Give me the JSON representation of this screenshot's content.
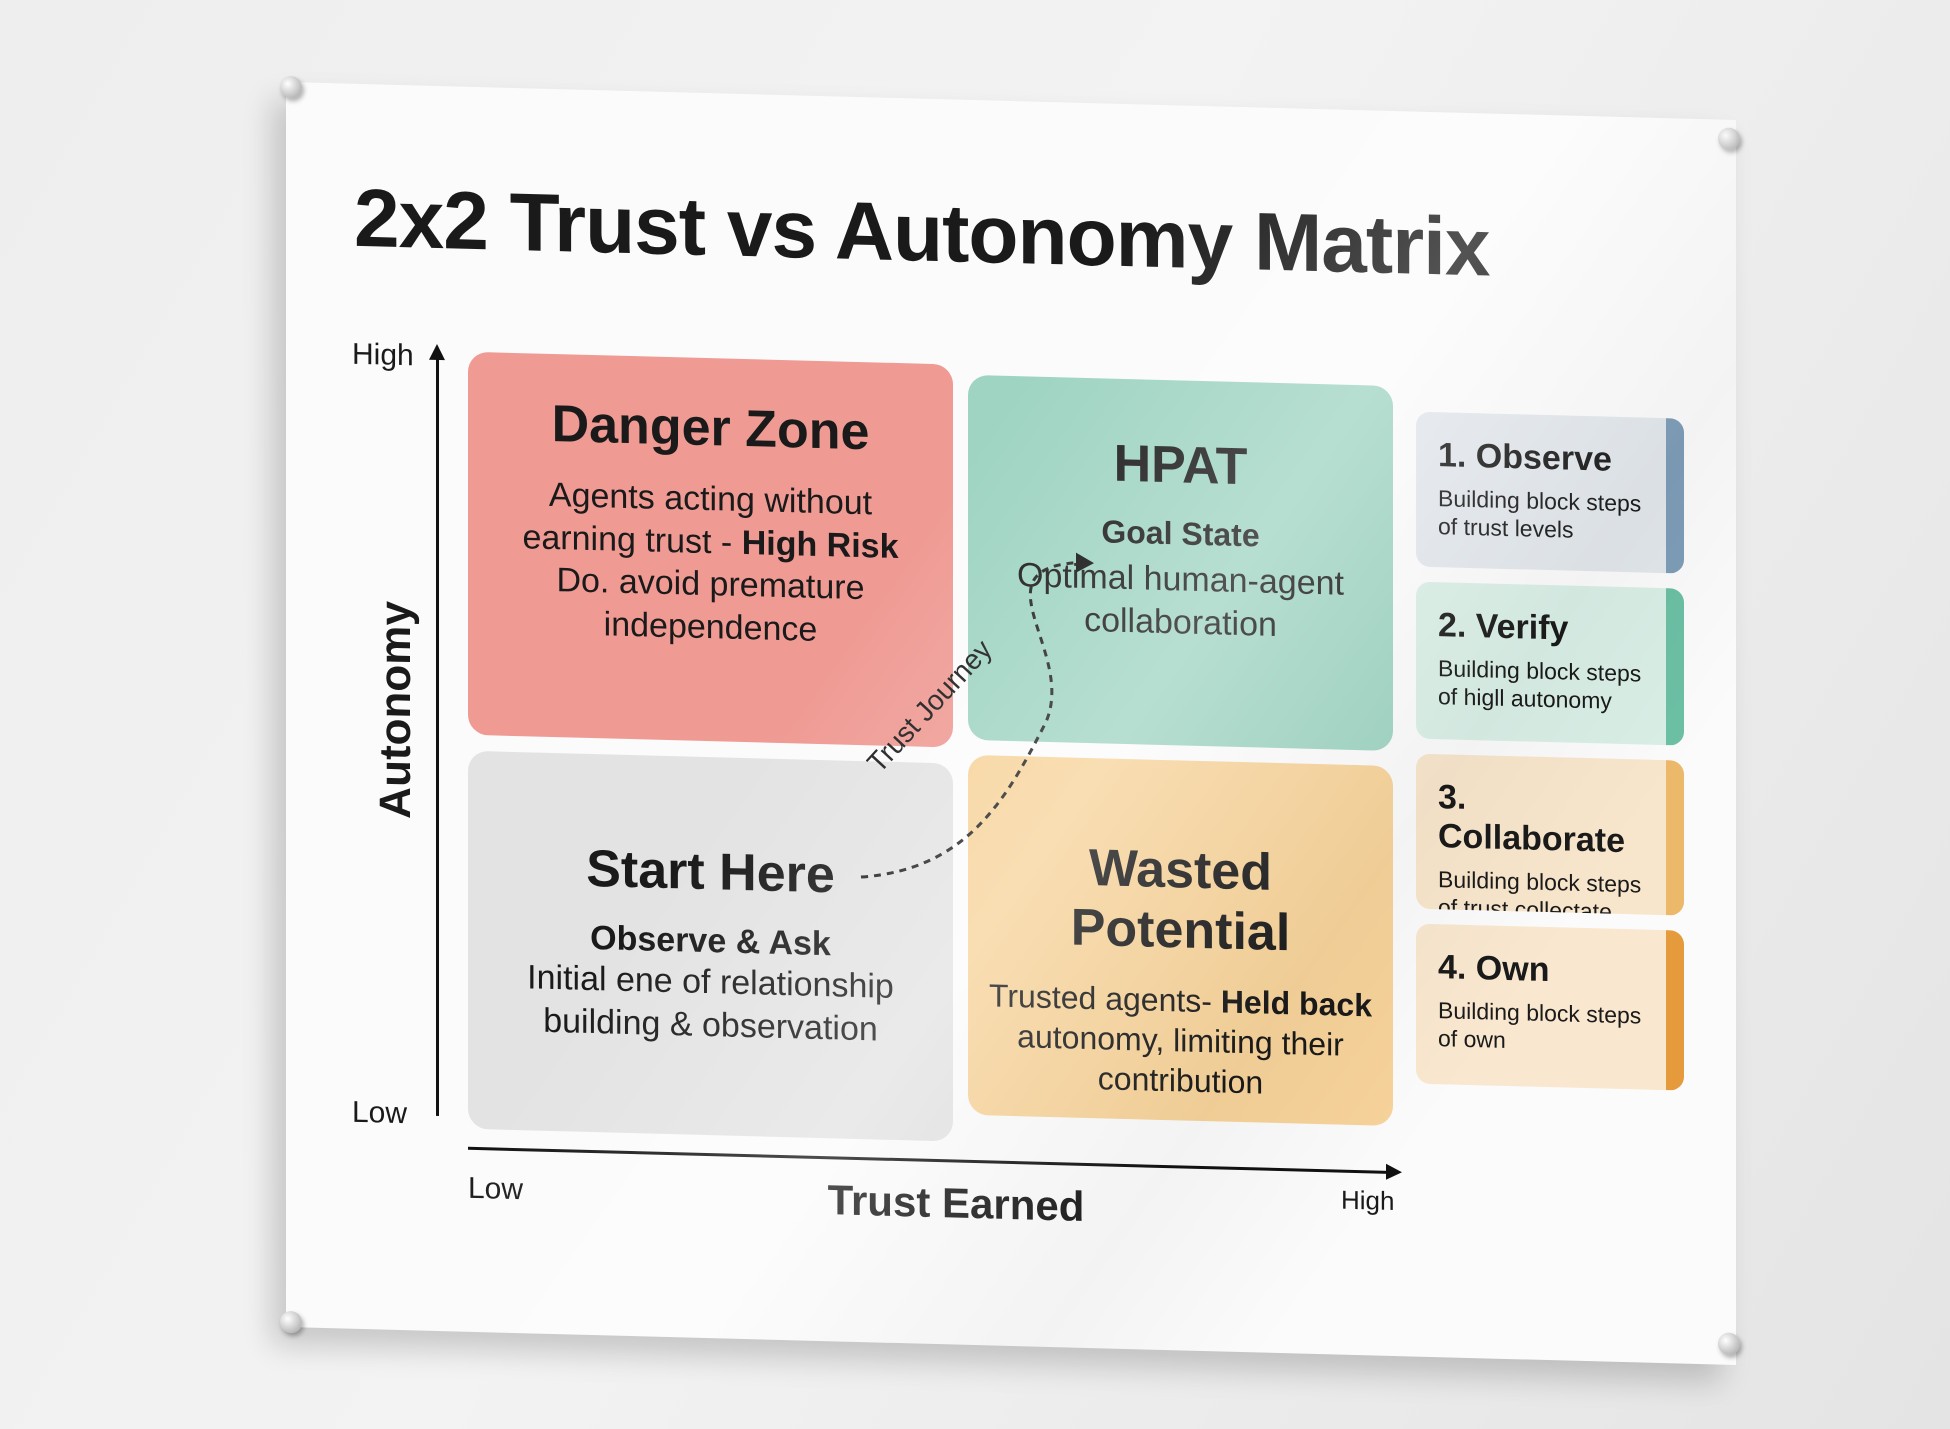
{
  "title": "2x2 Trust vs Autonomy Matrix",
  "y_axis": {
    "label": "Autonomy",
    "high": "High",
    "low": "Low"
  },
  "x_axis": {
    "label": "Trust Earned",
    "high": "High",
    "low": "Low"
  },
  "journey_label": "Trust Journey",
  "quadrants": {
    "danger": {
      "title": "Danger Zone",
      "line1": "Agents acting without",
      "line2a": "earning trust - ",
      "line2b": "High Risk",
      "line3": "Do. avoid premature",
      "line4": "independence",
      "color": "#ef9a93"
    },
    "hpat": {
      "title": "HPAT",
      "subtitle": "Goal State",
      "line1": "Optimal human-agent",
      "line2": "collaboration",
      "color": "#9fd4c2"
    },
    "start": {
      "title": "Start Here",
      "subtitle": "Observe & Ask",
      "line1": "Initial ene of relationship",
      "line2": "building & observation",
      "color": "#e3e3e3"
    },
    "wasted": {
      "title": "Wasted Potential",
      "line1a": "Trusted agents- ",
      "line1b": "Held back",
      "line2": "autonomy, limiting their",
      "line3": "contribution",
      "color": "#f7d39a"
    }
  },
  "steps": [
    {
      "title": "1. Observe",
      "line1": "Building block steps",
      "line2": "of trust levels",
      "bg": "#e2e7ec",
      "accent": "#7e9db8"
    },
    {
      "title": "2. Verify",
      "line1": "Building block steps",
      "line2": "of higll autonomy",
      "bg": "#d9efe6",
      "accent": "#6cc0a4"
    },
    {
      "title": "3. Collaborate",
      "line1": "Building block steps",
      "line2": "of trust collectate",
      "bg": "#f8e6cc",
      "accent": "#ecb86a"
    },
    {
      "title": "4. Own",
      "line1": "Building block steps",
      "line2": "of own",
      "bg": "#f9e7cf",
      "accent": "#e59a3c"
    }
  ]
}
